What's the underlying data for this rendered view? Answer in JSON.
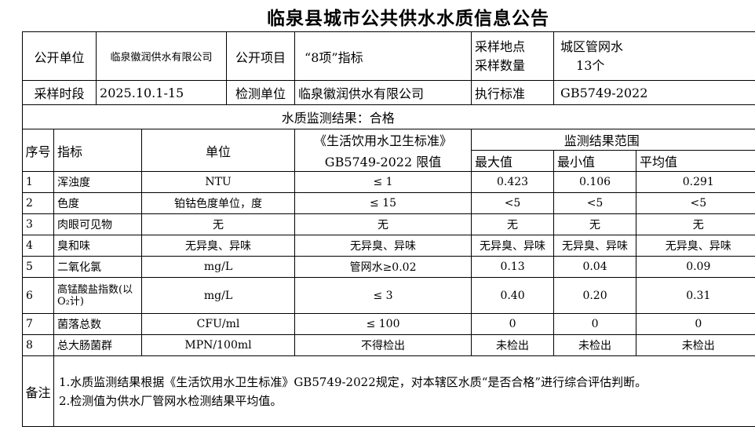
{
  "title": "临泉县城市公共供水水质信息公告",
  "info": {
    "publisher_label": "公开单位",
    "publisher": "临泉徽润供水有限公司",
    "project_label": "公开项目",
    "project": "“8项”指标",
    "site_label": "采样地点",
    "count_label": "采样数量",
    "site": "城区管网水",
    "count": "13个",
    "period_label": "采样时段",
    "period": "2025.10.1-15",
    "tester_label": "检测单位",
    "tester": "临泉徽润供水有限公司",
    "standard_label": "执行标准",
    "standard": "GB5749-2022"
  },
  "result_summary": "水质监测结果：合格",
  "headers": {
    "no": "序号",
    "indicator": "指标",
    "unit": "单位",
    "limit_line1": "《生活饮用水卫生标准》",
    "limit_line2": "GB5749-2022 限值",
    "range": "监测结果范围",
    "max": "最大值",
    "min": "最小值",
    "avg": "平均值"
  },
  "rows": [
    {
      "no": "1",
      "indicator": "浑浊度",
      "unit": "NTU",
      "limit": "≤ 1",
      "max": "0.423",
      "min": "0.106",
      "avg": "0.291"
    },
    {
      "no": "2",
      "indicator": "色度",
      "unit": "铂钴色度单位，度",
      "limit": "≤ 15",
      "max": "<5",
      "min": "<5",
      "avg": "<5"
    },
    {
      "no": "3",
      "indicator": "肉眼可见物",
      "unit": "无",
      "limit": "无",
      "max": "无",
      "min": "无",
      "avg": "无"
    },
    {
      "no": "4",
      "indicator": "臭和味",
      "unit": "无异臭、异味",
      "limit": "无异臭、异味",
      "max": "无异臭、异味",
      "min": "无异臭、异味",
      "avg": "无异臭、异味"
    },
    {
      "no": "5",
      "indicator": "二氧化氯",
      "unit": "mg/L",
      "limit": "管网水≥0.02",
      "max": "0.13",
      "min": "0.04",
      "avg": "0.09"
    },
    {
      "no": "6",
      "indicator": "高锰酸盐指数(以O₂计)",
      "unit": "mg/L",
      "limit": "≤ 3",
      "max": "0.40",
      "min": "0.20",
      "avg": "0.31"
    },
    {
      "no": "7",
      "indicator": "菌落总数",
      "unit": "CFU/ml",
      "limit": "≤ 100",
      "max": "0",
      "min": "0",
      "avg": "0"
    },
    {
      "no": "8",
      "indicator": "总大肠菌群",
      "unit": "MPN/100ml",
      "limit": "不得检出",
      "max": "未检出",
      "min": "未检出",
      "avg": "未检出"
    }
  ],
  "notes": {
    "label": "备注",
    "items": [
      "1.水质监测结果根据《生活饮用水卫生标准》GB5749-2022规定，对本辖区水质“是否合格”进行综合评估判断。",
      "2.检测值为供水厂管网水检测结果平均值。"
    ]
  }
}
